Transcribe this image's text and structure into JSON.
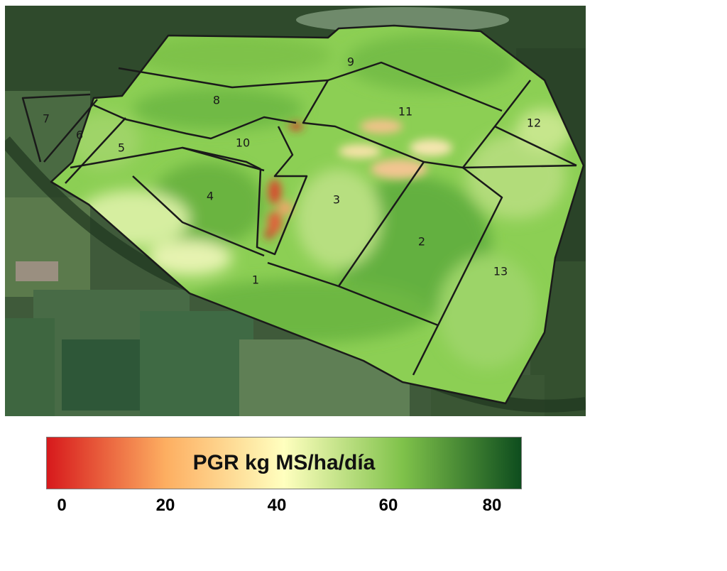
{
  "map": {
    "paddocks": [
      {
        "id": "1",
        "label": "1"
      },
      {
        "id": "2",
        "label": "2"
      },
      {
        "id": "3",
        "label": "3"
      },
      {
        "id": "4",
        "label": "4"
      },
      {
        "id": "5",
        "label": "5"
      },
      {
        "id": "6",
        "label": "6"
      },
      {
        "id": "7",
        "label": "7"
      },
      {
        "id": "8",
        "label": "8"
      },
      {
        "id": "9",
        "label": "9"
      },
      {
        "id": "10",
        "label": "10"
      },
      {
        "id": "11",
        "label": "11"
      },
      {
        "id": "12",
        "label": "12"
      },
      {
        "id": "13",
        "label": "13"
      }
    ]
  },
  "legend": {
    "title": "PGR kg MS/ha/día",
    "ticks": [
      "0",
      "20",
      "40",
      "60",
      "80"
    ],
    "colors": {
      "low": "#d7191c",
      "mid_low": "#fdae61",
      "mid": "#ffffbf",
      "mid_high": "#7fc24a",
      "high": "#0e4d1e"
    }
  }
}
